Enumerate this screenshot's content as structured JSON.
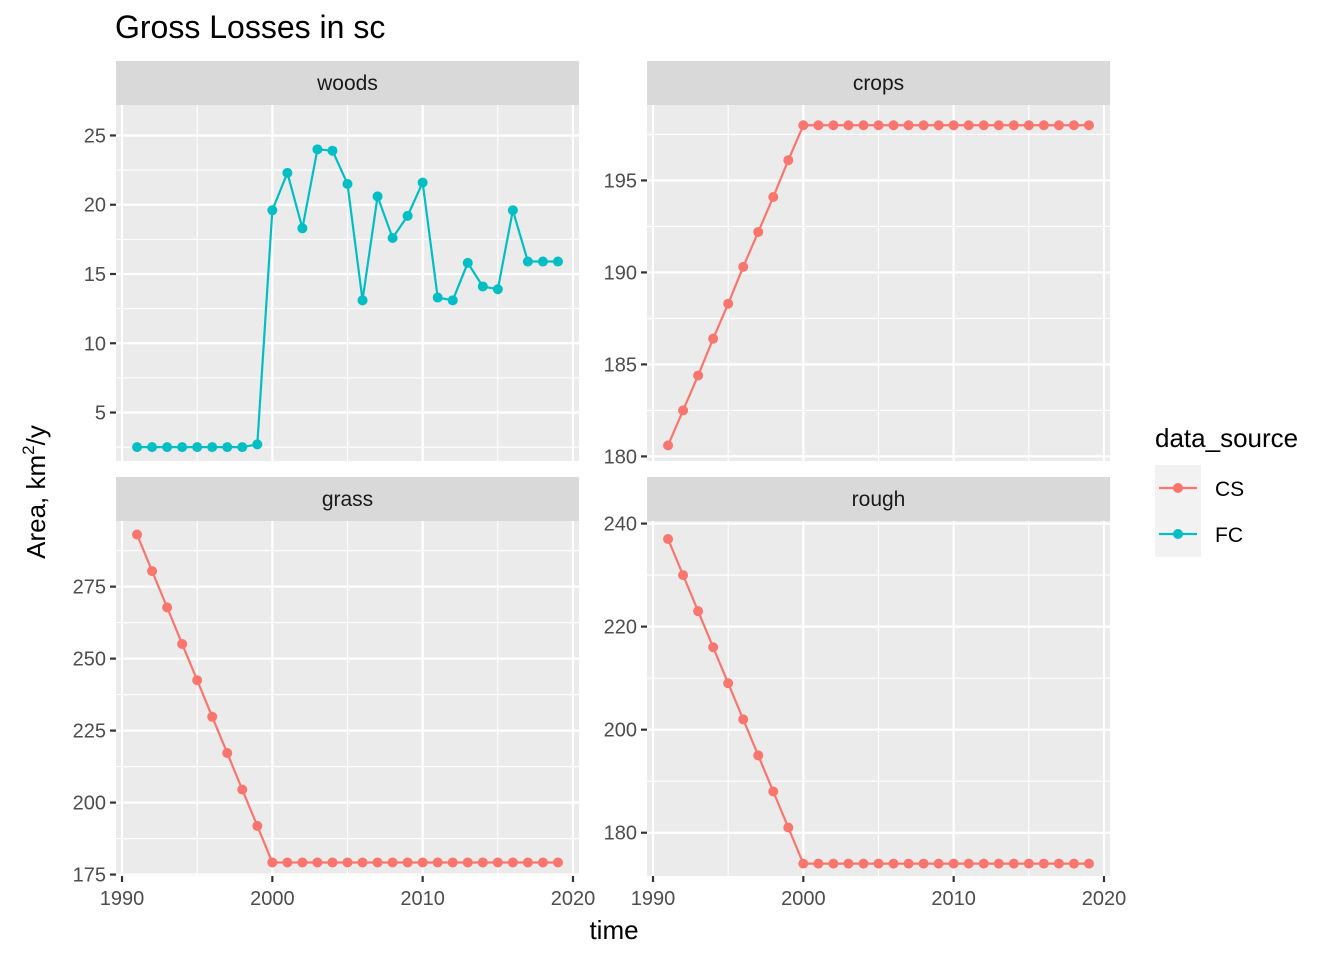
{
  "chart_data": {
    "type": "line",
    "title": "Gross Losses in sc",
    "xlabel": "time",
    "ylabel_prefix": "Area,  km",
    "ylabel_sup": "2",
    "ylabel_suffix": "/y",
    "legend": {
      "title": "data_source",
      "position": "right",
      "entries": [
        {
          "name": "CS",
          "color": "#F8766D"
        },
        {
          "name": "FC",
          "color": "#00BFC4"
        }
      ]
    },
    "xlim": [
      1989.6,
      2020.4
    ],
    "xticks": [
      1990,
      2000,
      2010,
      2020
    ],
    "grid": true,
    "facets": [
      {
        "label": "woods",
        "ylim": [
          1.5,
          27.2
        ],
        "yticks": [
          5,
          10,
          15,
          20,
          25
        ],
        "series": [
          {
            "name": "FC",
            "color": "#00BFC4",
            "x": [
              1991,
              1992,
              1993,
              1994,
              1995,
              1996,
              1997,
              1998,
              1999,
              2000,
              2001,
              2002,
              2003,
              2004,
              2005,
              2006,
              2007,
              2008,
              2009,
              2010,
              2011,
              2012,
              2013,
              2014,
              2015,
              2016,
              2017,
              2018,
              2019
            ],
            "y": [
              2.5,
              2.5,
              2.5,
              2.5,
              2.5,
              2.5,
              2.5,
              2.5,
              2.7,
              19.6,
              22.3,
              18.3,
              24.0,
              23.9,
              21.5,
              13.1,
              20.6,
              17.6,
              19.2,
              21.6,
              13.3,
              13.1,
              15.8,
              14.1,
              13.9,
              19.6,
              15.9,
              15.9,
              15.9
            ]
          }
        ]
      },
      {
        "label": "crops",
        "ylim": [
          179.75,
          199.1
        ],
        "yticks": [
          180,
          185,
          190,
          195
        ],
        "series": [
          {
            "name": "CS",
            "color": "#F8766D",
            "x": [
              1991,
              1992,
              1993,
              1994,
              1995,
              1996,
              1997,
              1998,
              1999,
              2000,
              2001,
              2002,
              2003,
              2004,
              2005,
              2006,
              2007,
              2008,
              2009,
              2010,
              2011,
              2012,
              2013,
              2014,
              2015,
              2016,
              2017,
              2018,
              2019
            ],
            "y": [
              180.6,
              182.5,
              184.4,
              186.4,
              188.3,
              190.3,
              192.2,
              194.1,
              196.1,
              198.0,
              198.0,
              198.0,
              198.0,
              198.0,
              198.0,
              198.0,
              198.0,
              198.0,
              198.0,
              198.0,
              198.0,
              198.0,
              198.0,
              198.0,
              198.0,
              198.0,
              198.0,
              198.0,
              198.0
            ]
          }
        ]
      },
      {
        "label": "grass",
        "ylim": [
          174.5,
          297.8
        ],
        "yticks": [
          175,
          200,
          225,
          250,
          275
        ],
        "series": [
          {
            "name": "CS",
            "color": "#F8766D",
            "x": [
              1991,
              1992,
              1993,
              1994,
              1995,
              1996,
              1997,
              1998,
              1999,
              2000,
              2001,
              2002,
              2003,
              2004,
              2005,
              2006,
              2007,
              2008,
              2009,
              2010,
              2011,
              2012,
              2013,
              2014,
              2015,
              2016,
              2017,
              2018,
              2019
            ],
            "y": [
              293.1,
              280.4,
              267.8,
              255.1,
              242.5,
              229.8,
              217.2,
              204.5,
              191.9,
              179.2,
              179.2,
              179.2,
              179.2,
              179.2,
              179.2,
              179.2,
              179.2,
              179.2,
              179.2,
              179.2,
              179.2,
              179.2,
              179.2,
              179.2,
              179.2,
              179.2,
              179.2,
              179.2,
              179.2
            ]
          }
        ]
      },
      {
        "label": "rough",
        "ylim": [
          171.6,
          240.5
        ],
        "yticks": [
          180,
          200,
          220,
          240
        ],
        "series": [
          {
            "name": "CS",
            "color": "#F8766D",
            "x": [
              1991,
              1992,
              1993,
              1994,
              1995,
              1996,
              1997,
              1998,
              1999,
              2000,
              2001,
              2002,
              2003,
              2004,
              2005,
              2006,
              2007,
              2008,
              2009,
              2010,
              2011,
              2012,
              2013,
              2014,
              2015,
              2016,
              2017,
              2018,
              2019
            ],
            "y": [
              237.0,
              230.0,
              223.0,
              216.0,
              209.0,
              202.0,
              195.0,
              188.0,
              181.0,
              174.0,
              174.0,
              174.0,
              174.0,
              174.0,
              174.0,
              174.0,
              174.0,
              174.0,
              174.0,
              174.0,
              174.0,
              174.0,
              174.0,
              174.0,
              174.0,
              174.0,
              174.0,
              174.0,
              174.0
            ]
          }
        ]
      }
    ]
  }
}
